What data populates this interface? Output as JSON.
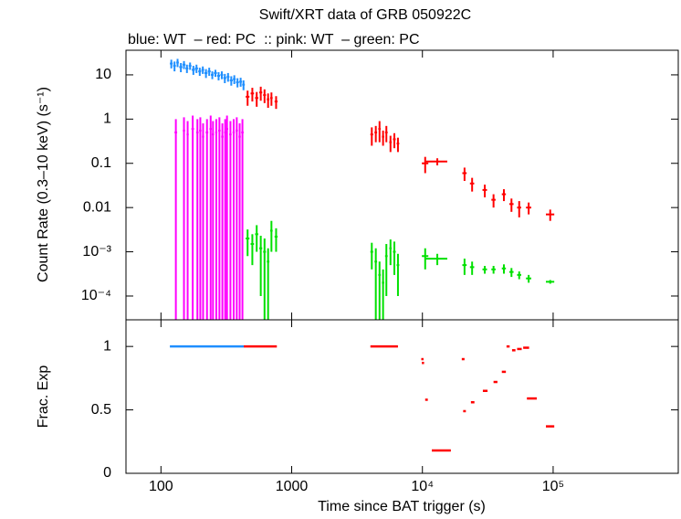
{
  "chart_data": {
    "type": "scatter",
    "title": "Swift/XRT data of GRB 050922C",
    "subtitle": "blue: WT  – red: PC  :: pink: WT  – green: PC",
    "x_label": "Time since BAT trigger (s)",
    "log_x": true,
    "xlim": [
      54,
      906000
    ],
    "xticks": [
      100,
      1000,
      {
        "value": 10000,
        "label": "10⁴"
      },
      {
        "value": 100000,
        "label": "10⁵"
      }
    ],
    "panels": [
      {
        "type": "scatter",
        "y_label": "Count Rate (0.3–10 keV) (s⁻¹)",
        "log_y": true,
        "ylim": [
          2.9e-05,
          36
        ],
        "yticks": [
          10,
          1,
          0.1,
          0.01,
          {
            "value": 0.001,
            "label": "10⁻³"
          },
          {
            "value": 0.0001,
            "label": "10⁻⁴"
          }
        ],
        "series": [
          {
            "name": "WT",
            "color": "#1f8fff",
            "x": [
              120,
              127,
              134,
              142,
              150,
              158,
              167,
              177,
              187,
              198,
              209,
              221,
              234,
              247,
              261,
              276,
              292,
              308,
              326,
              345,
              364,
              385,
              407,
              428
            ],
            "x_err": [
              3,
              3,
              3,
              4,
              4,
              4,
              4,
              5,
              5,
              5,
              5,
              6,
              6,
              6,
              7,
              7,
              7,
              8,
              8,
              9,
              9,
              10,
              10,
              10
            ],
            "values": [
              18,
              16,
              19,
              15,
              17,
              14,
              16,
              13,
              14,
              12,
              13,
              11,
              12,
              10,
              11,
              9.5,
              10,
              8.5,
              9,
              7.5,
              8,
              6.8,
              7,
              6
            ],
            "errors": [
              4,
              4,
              4,
              3.5,
              3.5,
              3,
              3,
              3,
              3,
              2.5,
              2.5,
              2.5,
              2.5,
              2,
              2,
              2,
              2,
              2,
              2,
              1.8,
              1.8,
              1.6,
              1.6,
              1.5
            ]
          },
          {
            "name": "PC",
            "color": "#ff0000",
            "x": [
              460,
              500,
              540,
              580,
              620,
              660,
              700,
              760,
              4100,
              4400,
              4700,
              5000,
              5300,
              5700,
              6100,
              6500,
              10500,
              13000,
              21000,
              24000,
              30000,
              35000,
              42000,
              48000,
              55000,
              65000,
              95000
            ],
            "x_err": [
              15,
              15,
              15,
              15,
              15,
              15,
              15,
              20,
              100,
              100,
              100,
              100,
              120,
              120,
              150,
              150,
              600,
              2500,
              800,
              900,
              1200,
              1300,
              1500,
              1800,
              2000,
              3000,
              7000
            ],
            "values": [
              3.2,
              3.8,
              3,
              4,
              3.5,
              2.8,
              3,
              2.5,
              0.45,
              0.5,
              0.6,
              0.4,
              0.5,
              0.3,
              0.35,
              0.28,
              0.1,
              0.11,
              0.06,
              0.035,
              0.025,
              0.015,
              0.02,
              0.012,
              0.01,
              0.01,
              0.007
            ],
            "errors": [
              1.2,
              1.3,
              1.1,
              1.4,
              1.2,
              1,
              1,
              0.8,
              0.2,
              0.2,
              0.3,
              0.15,
              0.2,
              0.12,
              0.13,
              0.1,
              0.04,
              0.02,
              0.02,
              0.012,
              0.008,
              0.005,
              0.006,
              0.004,
              0.004,
              0.003,
              0.002
            ]
          },
          {
            "name": "WT",
            "color": "#ff00ff",
            "x": [
              130,
              150,
              160,
              175,
              190,
              200,
              210,
              225,
              240,
              250,
              265,
              280,
              295,
              310,
              320,
              340,
              360,
              380,
              400,
              420
            ],
            "x_err": [
              3,
              3,
              3,
              4,
              4,
              4,
              4,
              5,
              5,
              5,
              5,
              6,
              6,
              6,
              7,
              7,
              7,
              8,
              8,
              9
            ],
            "values": [
              0.5,
              0.55,
              0.45,
              0.6,
              0.5,
              0.55,
              0.4,
              0.5,
              0.6,
              0.45,
              0.5,
              0.55,
              0.4,
              0.5,
              0.6,
              0.45,
              0.5,
              0.55,
              0.4,
              0.5
            ],
            "errors": [
              0.5,
              0.55,
              0.45,
              0.6,
              0.5,
              0.55,
              0.4,
              0.5,
              0.6,
              0.45,
              0.5,
              0.55,
              0.4,
              0.5,
              0.6,
              0.45,
              0.5,
              0.55,
              0.4,
              0.5
            ]
          },
          {
            "name": "PC",
            "color": "#00e000",
            "x": [
              460,
              500,
              540,
              580,
              620,
              660,
              700,
              760,
              4100,
              4400,
              4700,
              5000,
              5300,
              5700,
              6100,
              6500,
              10500,
              13000,
              21000,
              24000,
              30000,
              35000,
              42000,
              48000,
              55000,
              65000,
              95000
            ],
            "x_err": [
              15,
              15,
              15,
              15,
              15,
              15,
              15,
              20,
              100,
              100,
              100,
              100,
              120,
              120,
              150,
              150,
              600,
              2500,
              800,
              900,
              1200,
              1300,
              1500,
              1800,
              2000,
              3000,
              7000
            ],
            "values": [
              0.002,
              0.0015,
              0.0025,
              0.0012,
              0.001,
              0.0006,
              0.003,
              0.0022,
              0.001,
              0.0006,
              0.0003,
              0.0002,
              0.0008,
              0.0012,
              0.001,
              0.0005,
              0.0008,
              0.0007,
              0.0005,
              0.00045,
              0.0004,
              0.0004,
              0.00042,
              0.00035,
              0.0003,
              0.00025,
              0.00021
            ],
            "errors": [
              0.0012,
              0.001,
              0.0015,
              0.0011,
              0.001,
              0.0006,
              0.002,
              0.0012,
              0.0006,
              0.0006,
              0.0003,
              0.0002,
              0.0007,
              0.0007,
              0.0007,
              0.0004,
              0.0004,
              0.0002,
              0.0002,
              0.00015,
              8e-05,
              8e-05,
              0.0001,
              8e-05,
              6e-05,
              5e-05,
              2e-05
            ]
          }
        ]
      },
      {
        "type": "segments",
        "y_label": "Frac. Exp",
        "ylim": [
          0,
          1.21
        ],
        "yticks": [
          0,
          0.5,
          1
        ],
        "series": [
          {
            "color": "#1f8fff",
            "x": [
              117
            ],
            "x_end": [
              430
            ],
            "values": [
              1
            ]
          },
          {
            "color": "#ff0000",
            "x": [
              430,
              4000,
              9800,
              9900,
              10500,
              11800,
              20000,
              20500,
              23500,
              29000,
              35000,
              40500,
              44000,
              48500,
              53000,
              59000,
              63000,
              88000
            ],
            "x_end": [
              770,
              6500,
              10200,
              10300,
              11000,
              16500,
              21000,
              21500,
              25000,
              31500,
              37500,
              43500,
              46500,
              51500,
              57500,
              65500,
              75000,
              102000
            ],
            "values": [
              1,
              1,
              0.9,
              0.87,
              0.58,
              0.18,
              0.9,
              0.49,
              0.56,
              0.65,
              0.72,
              0.8,
              1,
              0.97,
              0.98,
              0.99,
              0.59,
              0.37
            ]
          }
        ]
      }
    ]
  }
}
